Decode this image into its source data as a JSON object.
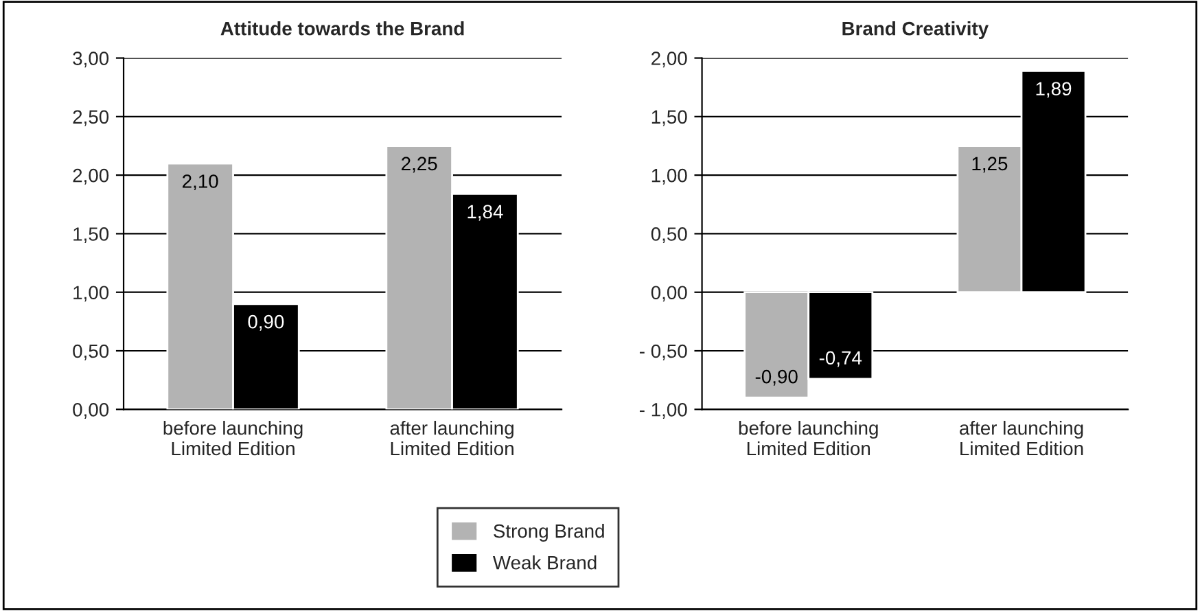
{
  "chart_data": [
    {
      "type": "bar",
      "title": "Attitude towards the Brand",
      "categories": [
        "before launching\nLimited Edition",
        "after launching\nLimited Edition"
      ],
      "series": [
        {
          "name": "Strong Brand",
          "color": "#b3b3b3",
          "values": [
            2.1,
            2.25
          ],
          "value_labels": [
            "2,10",
            "2,25"
          ]
        },
        {
          "name": "Weak Brand",
          "color": "#000000",
          "values": [
            0.9,
            1.84
          ],
          "value_labels": [
            "0,90",
            "1,84"
          ]
        }
      ],
      "ylim": [
        0,
        3
      ],
      "yticks": [
        {
          "value": 0,
          "label": "0,00"
        },
        {
          "value": 0.5,
          "label": "0,50"
        },
        {
          "value": 1,
          "label": "1,00"
        },
        {
          "value": 1.5,
          "label": "1,50"
        },
        {
          "value": 2,
          "label": "2,00"
        },
        {
          "value": 2.5,
          "label": "2,50"
        },
        {
          "value": 3,
          "label": "3,00"
        }
      ],
      "grid": "y",
      "legend": "bottom"
    },
    {
      "type": "bar",
      "title": "Brand Creativity",
      "categories": [
        "before launching\nLimited Edition",
        "after launching\nLimited Edition"
      ],
      "series": [
        {
          "name": "Strong Brand",
          "color": "#b3b3b3",
          "values": [
            -0.9,
            1.25
          ],
          "value_labels": [
            "-0,90",
            "1,25"
          ]
        },
        {
          "name": "Weak Brand",
          "color": "#000000",
          "values": [
            -0.74,
            1.89
          ],
          "value_labels": [
            "-0,74",
            "1,89"
          ]
        }
      ],
      "ylim": [
        -1,
        2
      ],
      "yticks": [
        {
          "value": -1,
          "label": "- 1,00"
        },
        {
          "value": -0.5,
          "label": "- 0,50"
        },
        {
          "value": 0,
          "label": "0,00"
        },
        {
          "value": 0.5,
          "label": "0,50"
        },
        {
          "value": 1,
          "label": "1,00"
        },
        {
          "value": 1.5,
          "label": "1,50"
        },
        {
          "value": 2,
          "label": "2,00"
        }
      ],
      "grid": "y",
      "legend": "bottom"
    }
  ]
}
